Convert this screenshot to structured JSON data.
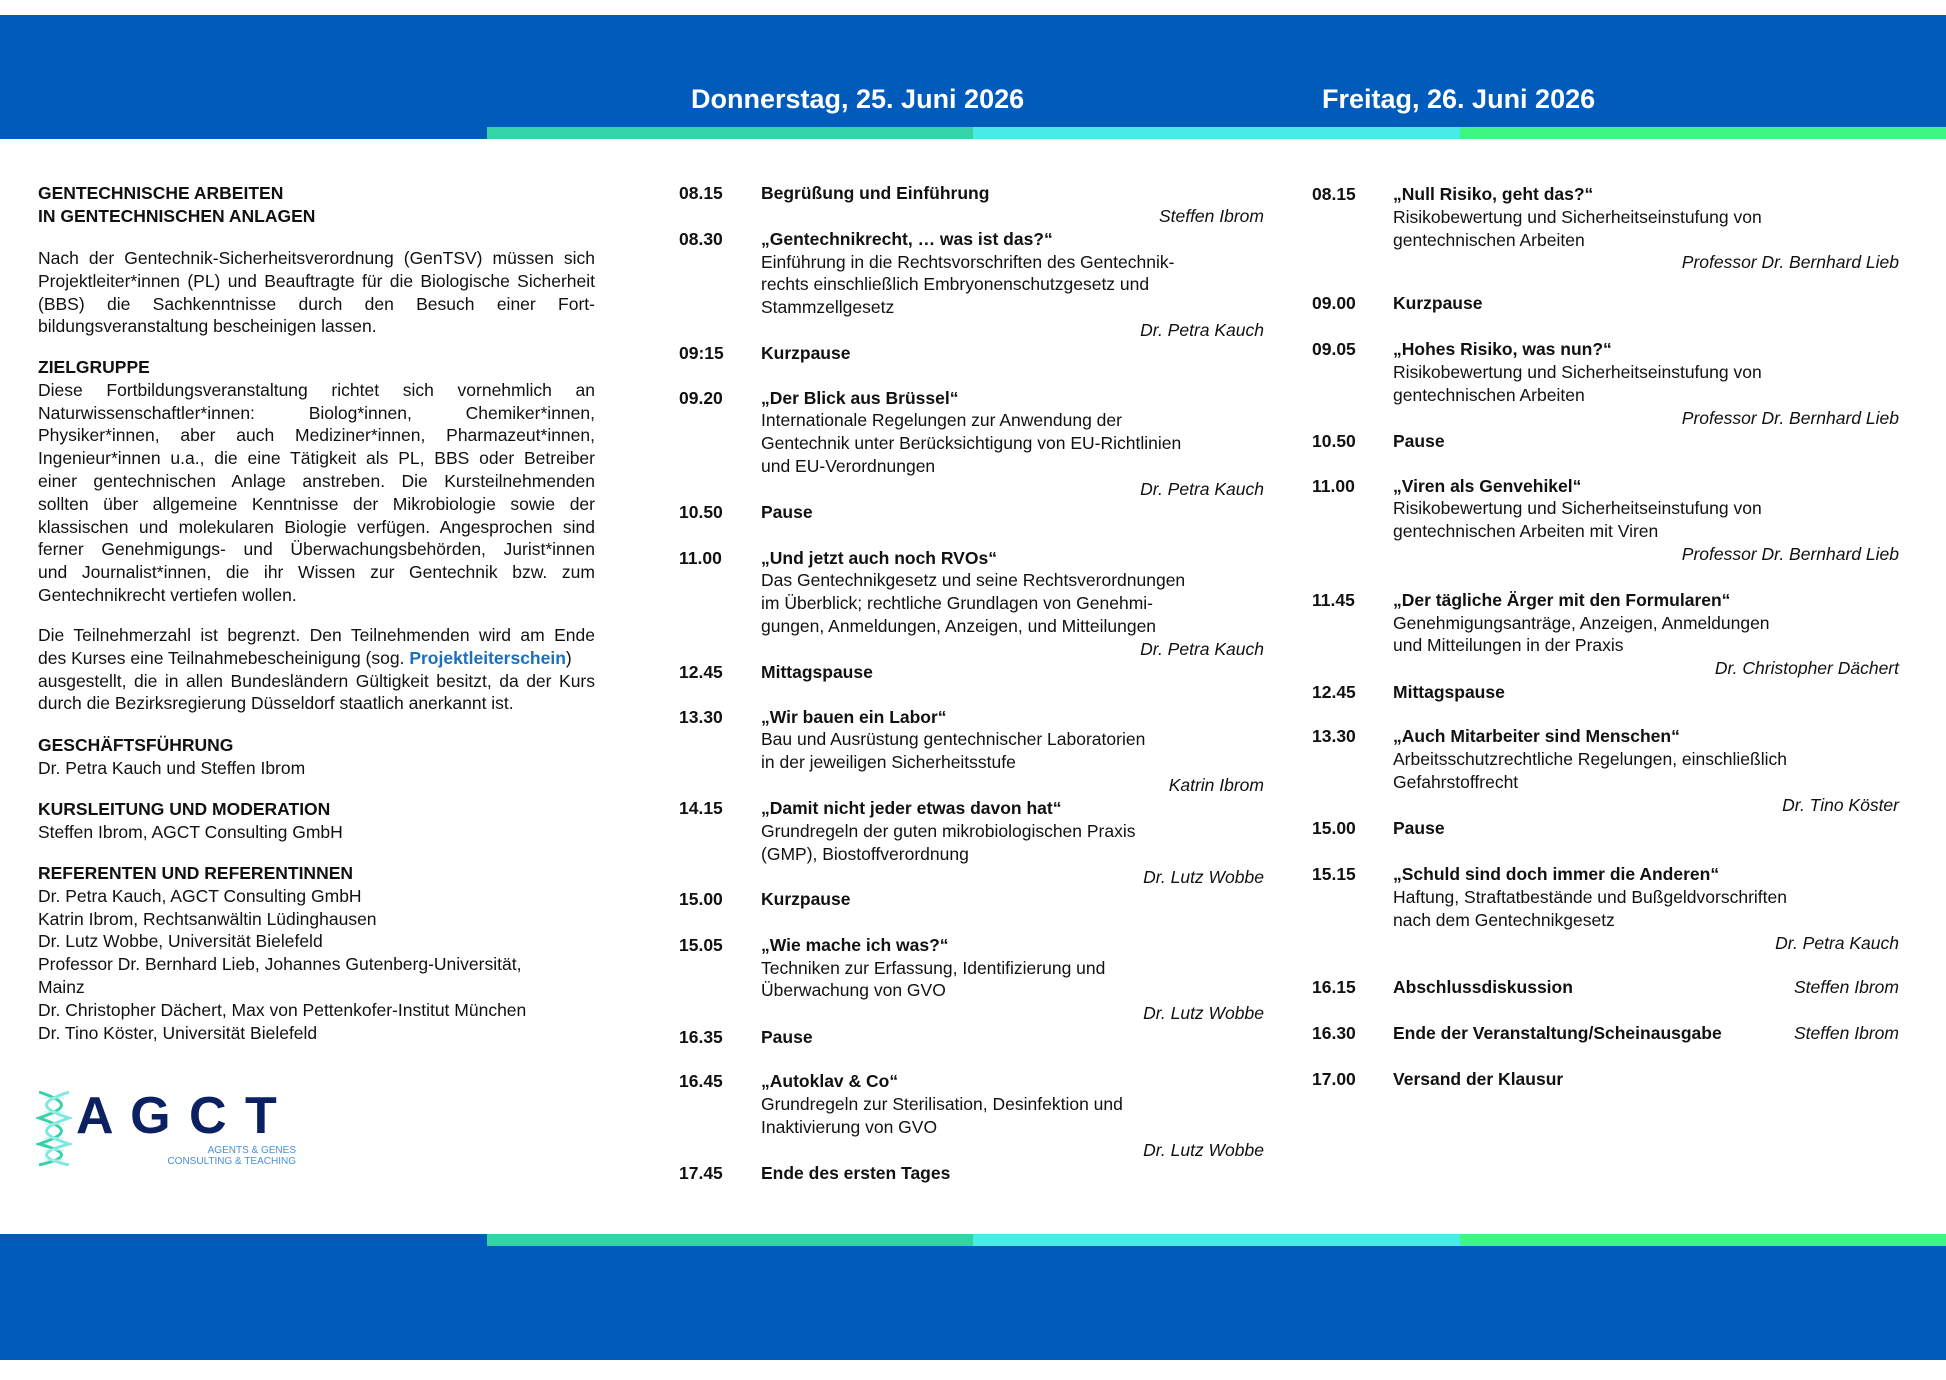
{
  "header": {
    "day1": "Donnerstag, 25. Juni 2026",
    "day2": "Freitag, 26. Juni 2026",
    "colors": {
      "band": "#005bbb",
      "stripe1": "#37d3a8",
      "stripe2": "#4aebe6",
      "stripe3": "#40f582"
    }
  },
  "left": {
    "heading_lines": [
      "GENTECHNISCHE ARBEITEN",
      "IN GENTECHNISCHEN ANLAGEN"
    ],
    "intro_lines": [
      "Nach der Gentechnik-Sicherheitsverordnung (GenTSV) müssen sich",
      "Projektleiter*innen (PL) und Beauftragte für die Biologische Sicherheit",
      "(BBS) die Sachkenntnisse durch den Besuch einer Fort-",
      "bildungsveranstaltung bescheinigen lassen."
    ],
    "zielgruppe": {
      "title": "ZIELGRUPPE",
      "lines": [
        "Diese Fortbildungsveranstaltung richtet sich vornehmlich an",
        "Naturwissenschaftler*innen: Biolog*innen, Chemiker*innen,",
        "Physiker*innen, aber auch Mediziner*innen, Pharmazeut*innen,",
        "Ingenieur*innen u.a., die eine Tätigkeit als PL, BBS oder Betreiber",
        "einer gentechnischen Anlage anstreben. Die Kursteilnehmenden",
        "sollten über allgemeine Kenntnisse der Mikrobiologie sowie der",
        "klassischen und molekularen Biologie verfügen. Angesprochen sind",
        "ferner Genehmigungs- und Überwachungsbehörden, Jurist*innen",
        "und Journalist*innen, die ihr Wissen zur Gentechnik bzw. zum",
        "Gentechnikrecht vertiefen wollen."
      ]
    },
    "note": {
      "line1": "Die Teilnehmerzahl ist begrenzt. Den Teilnehmenden wird am Ende",
      "line2_pre": "des Kurses eine Teilnahmebescheinigung (sog. ",
      "line2_link": "Projektleiterschein",
      "line2_post": ")",
      "line3": "ausgestellt, die in allen Bundesländern Gültigkeit besitzt, da der Kurs",
      "line4": "durch die Bezirksregierung Düsseldorf staatlich anerkannt ist."
    },
    "geschaeftsfuehrung": {
      "title": "GESCHÄFTSFÜHRUNG",
      "text": "Dr. Petra Kauch und Steffen Ibrom"
    },
    "kursleitung": {
      "title": "KURSLEITUNG UND MODERATION",
      "text": "Steffen Ibrom, AGCT Consulting GmbH"
    },
    "referenten": {
      "title": "REFERENTEN UND REFERENTINNEN",
      "lines": [
        "Dr. Petra Kauch, AGCT Consulting GmbH",
        "Katrin Ibrom, Rechtsanwältin Lüdinghausen",
        "Dr. Lutz Wobbe, Universität Bielefeld",
        "Professor Dr. Bernhard Lieb, Johannes Gutenberg-Universität,",
        "Mainz",
        "Dr. Christopher Dächert, Max von Pettenkofer-Institut München",
        "Dr. Tino Köster, Universität Bielefeld"
      ]
    },
    "logo": {
      "letters": "A G C T",
      "sub1": "AGENTS & GENES",
      "sub2": "CONSULTING & TEACHING"
    }
  },
  "day1": [
    {
      "time": "08.15",
      "title": "Begrüßung und Einführung",
      "desc": [],
      "speaker": "Steffen Ibrom"
    },
    {
      "time": "08.30",
      "title": "„Gentechnikrecht, … was ist das?“",
      "desc": [
        "Einführung in die Rechtsvorschriften des Gentechnik-",
        "rechts einschließlich Embryonenschutzgesetz und",
        "Stammzellgesetz"
      ],
      "speaker": "Dr. Petra Kauch"
    },
    {
      "time": "09:15",
      "title": "Kurzpause",
      "desc": [],
      "speaker": ""
    },
    {
      "time": "09.20",
      "title": "„Der Blick aus Brüssel“",
      "desc": [
        "Internationale Regelungen zur Anwendung der",
        "Gentechnik unter Berücksichtigung von EU-Richtlinien",
        "und EU-Verordnungen"
      ],
      "speaker": "Dr. Petra Kauch"
    },
    {
      "time": "10.50",
      "title": "Pause",
      "desc": [],
      "speaker": ""
    },
    {
      "time": "11.00",
      "title": "„Und jetzt auch noch RVOs“",
      "desc": [
        "Das Gentechnikgesetz und seine Rechtsverordnungen",
        "im Überblick; rechtliche Grundlagen von Genehmi-",
        "gungen, Anmeldungen, Anzeigen, und Mitteilungen"
      ],
      "speaker": "Dr. Petra Kauch"
    },
    {
      "time": "12.45",
      "title": "Mittagspause",
      "desc": [],
      "speaker": ""
    },
    {
      "time": "13.30",
      "title": "„Wir bauen ein Labor“",
      "desc": [
        "Bau und Ausrüstung gentechnischer Laboratorien",
        "in der jeweiligen Sicherheitsstufe"
      ],
      "speaker": "Katrin Ibrom"
    },
    {
      "time": "14.15",
      "title": "„Damit nicht jeder etwas davon hat“",
      "desc": [
        "Grundregeln der guten mikrobiologischen Praxis",
        "(GMP), Biostoffverordnung"
      ],
      "speaker": "Dr. Lutz Wobbe"
    },
    {
      "time": "15.00",
      "title": "Kurzpause",
      "desc": [],
      "speaker": ""
    },
    {
      "time": "15.05",
      "title": "„Wie mache ich was?“",
      "desc": [
        "Techniken zur Erfassung, Identifizierung und",
        "Überwachung von GVO"
      ],
      "speaker": "Dr. Lutz Wobbe"
    },
    {
      "time": "16.35",
      "title": "Pause",
      "desc": [],
      "speaker": ""
    },
    {
      "time": "16.45",
      "title": "„Autoklav & Co“",
      "desc": [
        "Grundregeln zur Sterilisation, Desinfektion und",
        "Inaktivierung von GVO"
      ],
      "speaker": "Dr. Lutz Wobbe"
    },
    {
      "time": "17.45",
      "title": "Ende des ersten Tages",
      "desc": [],
      "speaker": ""
    }
  ],
  "day2": [
    {
      "time": "08.15",
      "title": "„Null Risiko, geht das?“",
      "desc": [
        "Risikobewertung und Sicherheitseinstufung von",
        "gentechnischen Arbeiten"
      ],
      "speaker": "Professor Dr. Bernhard Lieb"
    },
    {
      "time": "09.00",
      "title": "Kurzpause",
      "desc": [],
      "speaker": ""
    },
    {
      "time": "09.05",
      "title": "„Hohes Risiko, was nun?“",
      "desc": [
        "Risikobewertung und Sicherheitseinstufung von",
        "gentechnischen Arbeiten"
      ],
      "speaker": "Professor Dr. Bernhard Lieb"
    },
    {
      "time": "10.50",
      "title": "Pause",
      "desc": [],
      "speaker": ""
    },
    {
      "time": "11.00",
      "title": "„Viren als Genvehikel“",
      "desc": [
        "Risikobewertung und Sicherheitseinstufung von",
        "gentechnischen Arbeiten mit Viren"
      ],
      "speaker": "Professor Dr. Bernhard Lieb"
    },
    {
      "time": "11.45",
      "title": "„Der tägliche Ärger mit den Formularen“",
      "desc": [
        "Genehmigungsanträge, Anzeigen, Anmeldungen",
        "und Mitteilungen in der Praxis"
      ],
      "speaker": "Dr. Christopher Dächert"
    },
    {
      "time": "12.45",
      "title": "Mittagspause",
      "desc": [],
      "speaker": ""
    },
    {
      "time": "13.30",
      "title": "„Auch Mitarbeiter sind Menschen“",
      "desc": [
        "Arbeitsschutzrechtliche Regelungen, einschließlich",
        "Gefahrstoffrecht"
      ],
      "speaker": "Dr. Tino Köster"
    },
    {
      "time": "15.00",
      "title": "Pause",
      "desc": [],
      "speaker": ""
    },
    {
      "time": "15.15",
      "title": "„Schuld sind doch immer die Anderen“",
      "desc": [
        "Haftung, Straftatbestände und Bußgeldvorschriften",
        "nach dem Gentechnikgesetz"
      ],
      "speaker": "Dr. Petra Kauch"
    },
    {
      "time": "16.15",
      "title": "Abschlussdiskussion",
      "desc": [],
      "speaker": "Steffen Ibrom",
      "inline": true
    },
    {
      "time": "16.30",
      "title": "Ende der Veranstaltung/Scheinausgabe",
      "desc": [],
      "speaker": "Steffen Ibrom",
      "inline": true
    },
    {
      "time": "17.00",
      "title": "Versand der Klausur",
      "desc": [],
      "speaker": ""
    }
  ]
}
